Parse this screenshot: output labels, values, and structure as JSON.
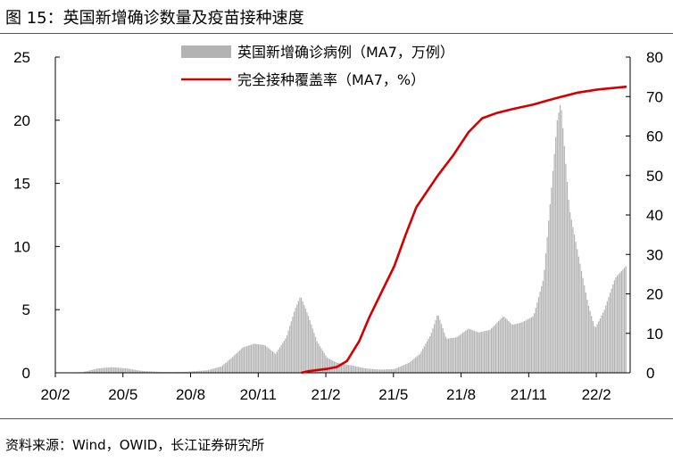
{
  "title": "图 15：英国新增确诊数量及疫苗接种速度",
  "source": "资料来源：Wind，OWID，长江证券研究所",
  "chart_data": {
    "type": "bar+line",
    "x_tick_labels": [
      "20/2",
      "20/5",
      "20/8",
      "20/11",
      "21/2",
      "21/5",
      "21/8",
      "21/11",
      "22/2"
    ],
    "x_start": "2020-02-01",
    "x_end": "2022-04-15",
    "left_axis": {
      "ylim": [
        0,
        25
      ],
      "ticks": [
        0,
        5,
        10,
        15,
        20,
        25
      ]
    },
    "right_axis": {
      "ylim": [
        0,
        80
      ],
      "ticks": [
        0,
        10,
        20,
        30,
        40,
        50,
        60,
        70,
        80
      ]
    },
    "series": [
      {
        "name": "英国新增确诊病例（MA7，万例）",
        "type": "bar",
        "axis": "left",
        "color": "#b3b3b3",
        "points": [
          [
            "2020-02-01",
            0
          ],
          [
            "2020-03-10",
            0.05
          ],
          [
            "2020-04-01",
            0.35
          ],
          [
            "2020-04-20",
            0.45
          ],
          [
            "2020-05-10",
            0.35
          ],
          [
            "2020-06-01",
            0.15
          ],
          [
            "2020-07-01",
            0.06
          ],
          [
            "2020-08-01",
            0.08
          ],
          [
            "2020-09-01",
            0.2
          ],
          [
            "2020-09-20",
            0.5
          ],
          [
            "2020-10-05",
            1.2
          ],
          [
            "2020-10-20",
            2.0
          ],
          [
            "2020-11-05",
            2.3
          ],
          [
            "2020-11-20",
            2.2
          ],
          [
            "2020-12-05",
            1.5
          ],
          [
            "2020-12-20",
            2.8
          ],
          [
            "2021-01-01",
            5.0
          ],
          [
            "2021-01-09",
            6.1
          ],
          [
            "2021-01-20",
            4.5
          ],
          [
            "2021-02-01",
            2.5
          ],
          [
            "2021-02-15",
            1.2
          ],
          [
            "2021-03-01",
            0.8
          ],
          [
            "2021-03-20",
            0.6
          ],
          [
            "2021-04-10",
            0.35
          ],
          [
            "2021-05-01",
            0.25
          ],
          [
            "2021-05-20",
            0.3
          ],
          [
            "2021-06-10",
            0.8
          ],
          [
            "2021-06-25",
            1.5
          ],
          [
            "2021-07-10",
            3.0
          ],
          [
            "2021-07-20",
            4.7
          ],
          [
            "2021-08-01",
            2.7
          ],
          [
            "2021-08-15",
            2.8
          ],
          [
            "2021-09-01",
            3.5
          ],
          [
            "2021-09-15",
            3.2
          ],
          [
            "2021-10-01",
            3.4
          ],
          [
            "2021-10-20",
            4.5
          ],
          [
            "2021-11-01",
            3.8
          ],
          [
            "2021-11-15",
            4.0
          ],
          [
            "2021-12-01",
            4.5
          ],
          [
            "2021-12-15",
            7.5
          ],
          [
            "2021-12-25",
            14.0
          ],
          [
            "2022-01-03",
            20.0
          ],
          [
            "2022-01-08",
            21.5
          ],
          [
            "2022-01-20",
            13.0
          ],
          [
            "2022-02-01",
            9.5
          ],
          [
            "2022-02-15",
            5.5
          ],
          [
            "2022-02-25",
            3.5
          ],
          [
            "2022-03-10",
            5.0
          ],
          [
            "2022-03-25",
            7.5
          ],
          [
            "2022-04-10",
            8.5
          ]
        ]
      },
      {
        "name": "完全接种覆盖率（MA7，%）",
        "type": "line",
        "axis": "right",
        "color": "#d40000",
        "points": [
          [
            "2021-01-10",
            0
          ],
          [
            "2021-01-20",
            0.4
          ],
          [
            "2021-02-15",
            1
          ],
          [
            "2021-03-01",
            1.5
          ],
          [
            "2021-03-15",
            3
          ],
          [
            "2021-04-01",
            8
          ],
          [
            "2021-04-15",
            14
          ],
          [
            "2021-05-01",
            20
          ],
          [
            "2021-05-20",
            27
          ],
          [
            "2021-06-05",
            35
          ],
          [
            "2021-06-20",
            42
          ],
          [
            "2021-07-05",
            46
          ],
          [
            "2021-07-20",
            50
          ],
          [
            "2021-08-10",
            55
          ],
          [
            "2021-09-01",
            61
          ],
          [
            "2021-09-20",
            64.5
          ],
          [
            "2021-10-10",
            65.8
          ],
          [
            "2021-11-01",
            66.8
          ],
          [
            "2021-12-01",
            68
          ],
          [
            "2021-12-20",
            69
          ],
          [
            "2022-01-10",
            70
          ],
          [
            "2022-02-01",
            71
          ],
          [
            "2022-03-01",
            71.8
          ],
          [
            "2022-04-10",
            72.5
          ]
        ]
      }
    ]
  }
}
